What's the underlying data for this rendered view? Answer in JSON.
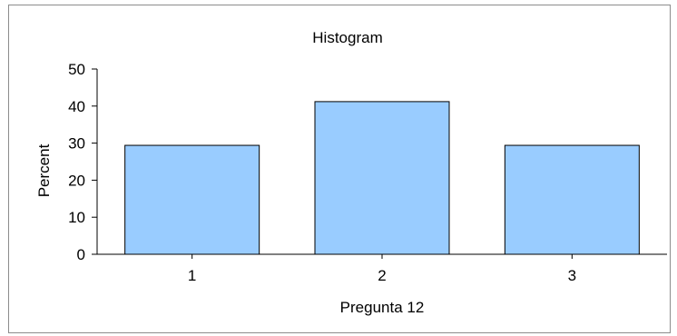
{
  "chart_data": {
    "type": "bar",
    "title": "Histogram",
    "xlabel": "Pregunta 12",
    "ylabel": "Percent",
    "categories": [
      "1",
      "2",
      "3"
    ],
    "values": [
      29.4,
      41.2,
      29.4
    ],
    "ylim": [
      0,
      50
    ],
    "yticks": [
      "0",
      "10",
      "20",
      "30",
      "40",
      "50"
    ],
    "grid": false,
    "legend": "none",
    "bar_color": "#99ccff",
    "bar_edge_color": "#000000"
  }
}
